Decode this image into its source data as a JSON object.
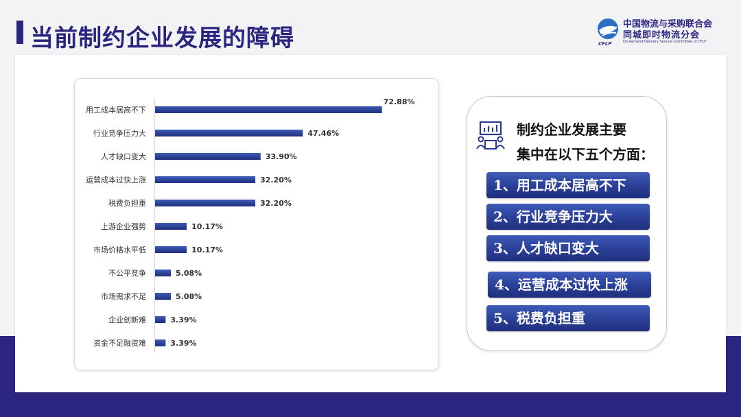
{
  "header": {
    "title": "当前制约企业发展的障碍"
  },
  "logo": {
    "line1": "中国物流与采购联合会",
    "line2": "同城即时物流分会",
    "line3": "On-demand Delivery Service Committee of CFLP",
    "abbr": "CFLP"
  },
  "colors": {
    "brand": "#2b2580",
    "bar_top": "#3d5bb8",
    "bar_bottom": "#1f2f7c",
    "pill": "#2a3f97"
  },
  "chart_data": {
    "type": "bar",
    "orientation": "horizontal",
    "categories": [
      "用工成本居高不下",
      "行业竞争压力大",
      "人才缺口变大",
      "运营成本过快上涨",
      "税费负担重",
      "上游企业强势",
      "市场价格水平低",
      "不公平竞争",
      "市场需求不足",
      "企业创新难",
      "资金不足融资难"
    ],
    "values": [
      72.88,
      47.46,
      33.9,
      32.2,
      32.2,
      10.17,
      10.17,
      5.08,
      5.08,
      3.39,
      3.39
    ],
    "labels": [
      "72.88%",
      "47.46%",
      "33.90%",
      "32.20%",
      "32.20%",
      "10.17%",
      "10.17%",
      "5.08%",
      "5.08%",
      "3.39%",
      "3.39%"
    ],
    "xlim": [
      0,
      80
    ],
    "grid": false
  },
  "summary": {
    "icon": "meeting-presentation-icon",
    "heading_line1": "制约企业发展主要",
    "heading_line2": "集中在以下五个方面：",
    "items": [
      "1、用工成本居高不下",
      "2、行业竞争压力大",
      "3、人才缺口变大",
      "4、运营成本过快上涨",
      "5、税费负担重"
    ]
  }
}
